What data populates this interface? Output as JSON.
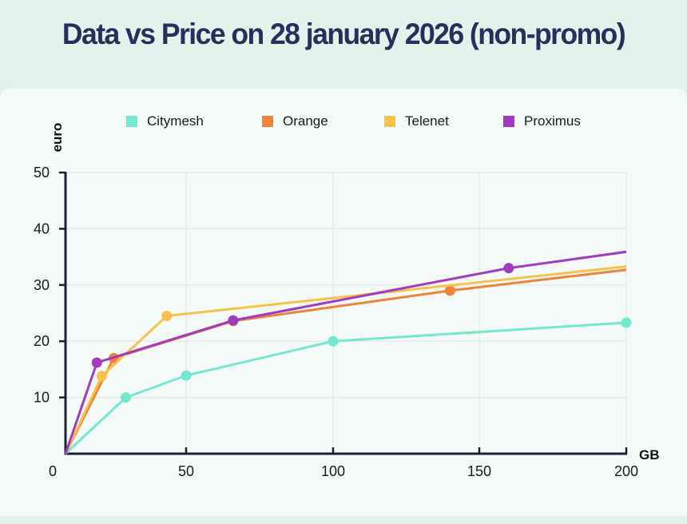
{
  "title": "Data vs Price on 28 january 2026 (non-promo)",
  "chart_data": {
    "type": "line",
    "title": "Data vs Price on 28 january 2026 (non-promo)",
    "xlabel": "GB",
    "ylabel": "euro",
    "xlim": [
      0,
      200
    ],
    "ylim": [
      0,
      50
    ],
    "x_ticks": [
      0,
      50,
      100,
      150,
      200
    ],
    "x_tick_labels": [
      "0",
      "50",
      "100",
      "150",
      "200"
    ],
    "y_ticks": [
      10,
      20,
      30,
      40,
      50
    ],
    "y_tick_labels": [
      "10",
      "20",
      "30",
      "40",
      "50"
    ],
    "grid": true,
    "legend_position": "top",
    "series": [
      {
        "name": "Citymesh",
        "color": "#72e8cf",
        "points": [
          [
            0,
            0
          ],
          [
            25,
            10
          ],
          [
            50,
            13.9
          ],
          [
            100,
            20
          ],
          [
            200,
            23.3
          ]
        ],
        "markers": [
          false,
          true,
          true,
          true,
          true
        ]
      },
      {
        "name": "Orange",
        "color": "#ef8236",
        "points": [
          [
            0,
            0
          ],
          [
            20,
            17
          ],
          [
            66,
            23.6
          ],
          [
            140,
            29
          ],
          [
            200,
            32.7
          ]
        ],
        "markers": [
          false,
          true,
          true,
          true,
          false
        ]
      },
      {
        "name": "Telenet",
        "color": "#f8c24a",
        "points": [
          [
            0,
            0
          ],
          [
            15,
            13.8
          ],
          [
            42,
            24.5
          ],
          [
            200,
            33.3
          ]
        ],
        "markers": [
          false,
          true,
          true,
          false
        ]
      },
      {
        "name": "Proximus",
        "color": "#a23ac2",
        "points": [
          [
            0,
            0
          ],
          [
            13,
            16.2
          ],
          [
            66,
            23.7
          ],
          [
            160,
            33
          ],
          [
            200,
            35.9
          ]
        ],
        "markers": [
          false,
          true,
          true,
          true,
          false
        ]
      }
    ]
  }
}
